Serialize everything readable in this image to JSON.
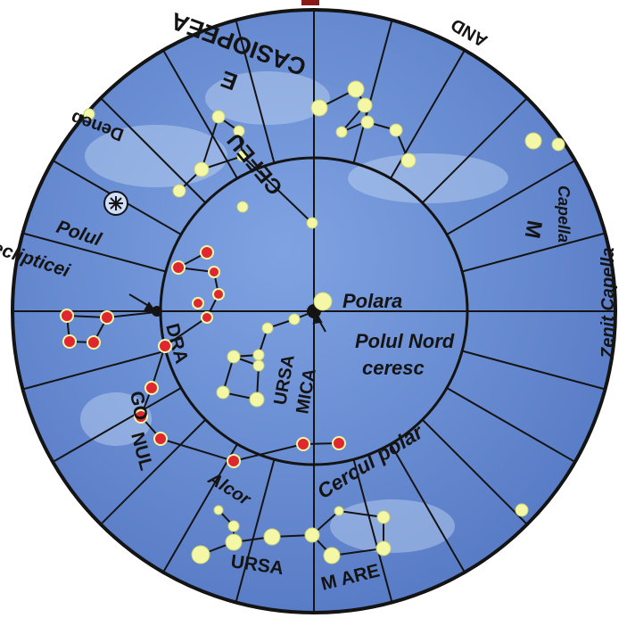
{
  "map": {
    "labels": {
      "cassiopeea": "CASIOPEEA",
      "cefeu": "CEFEU",
      "deneb": "Deneb",
      "polul": "Polul",
      "eclipticei": "eclipticei",
      "polara": "Polara",
      "polul_nord": "Polul Nord",
      "ceresc": "ceresc",
      "ursa_mica_1": "URSA",
      "ursa_mica_2": "MICA",
      "dragonul_1": "DRA",
      "dragonul_2": "GO",
      "dragonul_3": "NUL",
      "cercul_polar": "Cercul polar",
      "alcor": "Alcor",
      "ursa_mare_1": "URSA",
      "ursa_mare_2": "M ARE",
      "zenit_capella": "Zenit Capella",
      "capella": "Capella",
      "e_mark": "E",
      "m_mark": "M",
      "and_fragment": "AND"
    },
    "colors": {
      "sky": "#5f86d0",
      "sky_light": "#8fb2e8",
      "line": "#141414",
      "star_yellow": "#f3f7a6",
      "star_red": "#e0262e"
    }
  }
}
